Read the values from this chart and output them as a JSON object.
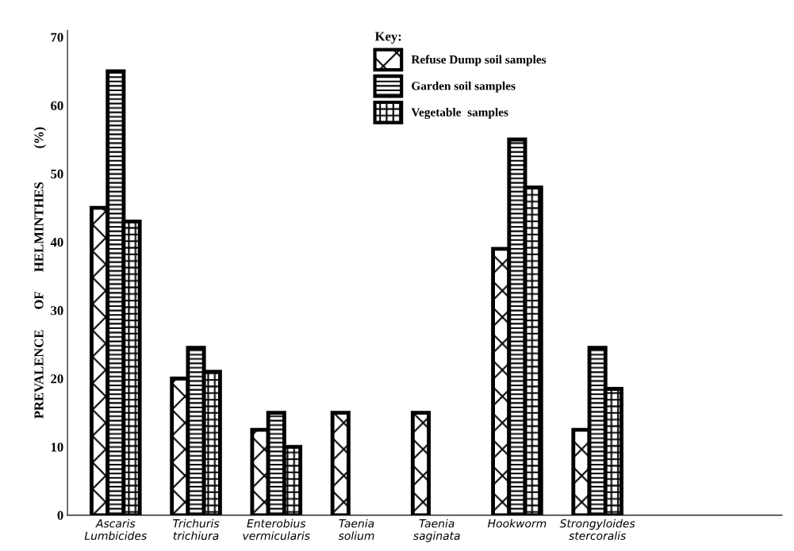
{
  "chart_data": {
    "type": "bar",
    "categories": [
      "Ascaris\nLumbicides",
      "Trichuris\ntrichiura",
      "Enterobius\nvermicularis",
      "Taenia\nsolium",
      "Taenia\nsaginata",
      "Hookworm",
      "Strongyloides\nstercoralis"
    ],
    "series": [
      {
        "name": "Refuse Dump soil samples",
        "color": "#000000",
        "values": [
          45,
          20,
          12.5,
          15,
          15,
          39,
          12.5
        ]
      },
      {
        "name": "Garden soil samples",
        "color": "#000000",
        "values": [
          65,
          24.5,
          15,
          null,
          null,
          55,
          24.5
        ]
      },
      {
        "name": "Vegetable  samples",
        "color": "#000000",
        "values": [
          43,
          21,
          10,
          null,
          null,
          48,
          18.5
        ]
      }
    ],
    "ylabel": "PREVALENCE      OF      HELMINTHES          (%)",
    "legend_title": "Key:",
    "legend": "top",
    "ylim": [
      0,
      71
    ],
    "yticks": [
      0,
      10,
      20,
      30,
      40,
      50,
      60,
      70
    ],
    "grid": false
  }
}
